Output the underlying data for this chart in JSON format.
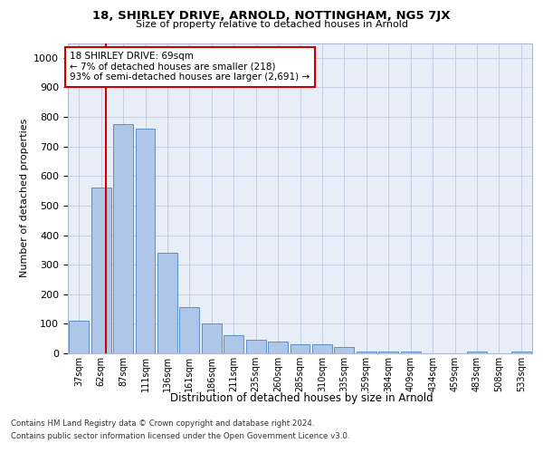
{
  "title": "18, SHIRLEY DRIVE, ARNOLD, NOTTINGHAM, NG5 7JX",
  "subtitle": "Size of property relative to detached houses in Arnold",
  "xlabel": "Distribution of detached houses by size in Arnold",
  "ylabel": "Number of detached properties",
  "categories": [
    "37sqm",
    "62sqm",
    "87sqm",
    "111sqm",
    "136sqm",
    "161sqm",
    "186sqm",
    "211sqm",
    "235sqm",
    "260sqm",
    "285sqm",
    "310sqm",
    "335sqm",
    "359sqm",
    "384sqm",
    "409sqm",
    "434sqm",
    "459sqm",
    "483sqm",
    "508sqm",
    "533sqm"
  ],
  "values": [
    110,
    560,
    775,
    760,
    340,
    155,
    100,
    60,
    45,
    40,
    30,
    30,
    20,
    5,
    5,
    5,
    0,
    0,
    5,
    0,
    5
  ],
  "bar_color": "#aec6e8",
  "bar_edge_color": "#5b8fc9",
  "vline_x_index": 1,
  "vline_color": "#cc0000",
  "annotation_text": "18 SHIRLEY DRIVE: 69sqm\n← 7% of detached houses are smaller (218)\n93% of semi-detached houses are larger (2,691) →",
  "annotation_box_color": "#ffffff",
  "annotation_box_edge": "#cc0000",
  "ylim": [
    0,
    1050
  ],
  "yticks": [
    0,
    100,
    200,
    300,
    400,
    500,
    600,
    700,
    800,
    900,
    1000
  ],
  "background_color": "#e8eef8",
  "footer_line1": "Contains HM Land Registry data © Crown copyright and database right 2024.",
  "footer_line2": "Contains public sector information licensed under the Open Government Licence v3.0."
}
